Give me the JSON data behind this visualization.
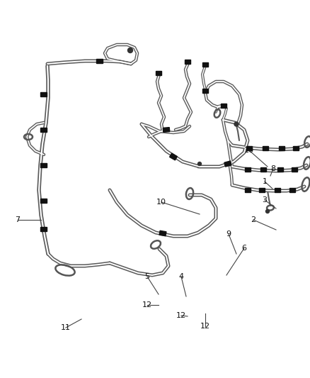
{
  "bg_color": "#ffffff",
  "hose_color": "#5a5a5a",
  "clamp_color": "#111111",
  "label_color": "#222222",
  "fig_width": 4.38,
  "fig_height": 5.33,
  "dpi": 100
}
